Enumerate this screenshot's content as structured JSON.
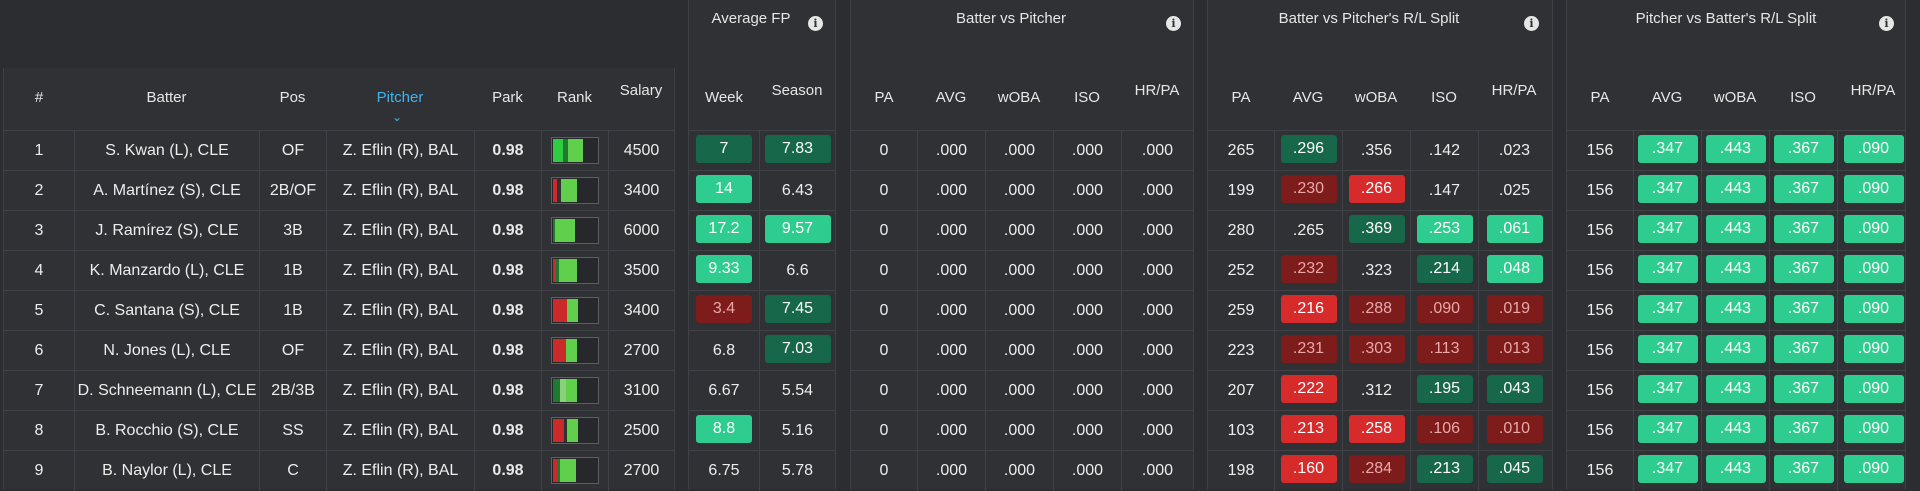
{
  "headers": {
    "left": {
      "num": "#",
      "batter": "Batter",
      "pos": "Pos",
      "pitcher": "Pitcher",
      "park": "Park",
      "rank": "Rank",
      "salary": "Salary"
    },
    "avgfp": {
      "title": "Average FP",
      "week": "Week",
      "season": "Season"
    },
    "bvp": {
      "title": "Batter vs Pitcher",
      "cols": [
        "PA",
        "AVG",
        "wOBA",
        "ISO",
        "HR/PA"
      ]
    },
    "bvprl": {
      "title": "Batter vs Pitcher's R/L Split",
      "cols": [
        "PA",
        "AVG",
        "wOBA",
        "ISO",
        "HR/PA"
      ]
    },
    "pvbrl": {
      "title": "Pitcher vs Batter's R/L Split",
      "cols": [
        "PA",
        "AVG",
        "wOBA",
        "ISO",
        "HR/PA"
      ]
    }
  },
  "rows": [
    {
      "num": "1",
      "batter": "S. Kwan (L), CLE",
      "pos": "OF",
      "pitcher": "Z. Eflin (R), BAL",
      "park": "0.98",
      "salary": "4500",
      "rank": [
        [
          "#2ecc40",
          0.22
        ],
        [
          "#1f7a31",
          0.12
        ],
        [
          "#5fcf4c",
          0.34
        ]
      ],
      "week": {
        "v": "7",
        "c": "g2"
      },
      "season": {
        "v": "7.83",
        "c": "g2"
      },
      "bvp": [
        "0",
        ".000",
        ".000",
        ".000",
        ".000"
      ],
      "bvprl": [
        {
          "v": "265"
        },
        {
          "v": ".296",
          "c": "g2"
        },
        {
          "v": ".356"
        },
        {
          "v": ".142"
        },
        {
          "v": ".023"
        }
      ],
      "pvbrl": [
        {
          "v": "156"
        },
        {
          "v": ".347",
          "c": "g1"
        },
        {
          "v": ".443",
          "c": "g1"
        },
        {
          "v": ".367",
          "c": "g1"
        },
        {
          "v": ".090",
          "c": "g1"
        }
      ]
    },
    {
      "num": "2",
      "batter": "A. Martínez (S), CLE",
      "pos": "2B/OF",
      "pitcher": "Z. Eflin (R), BAL",
      "park": "0.98",
      "salary": "3400",
      "rank": [
        [
          "#cc2a2a",
          0.1
        ],
        [
          "#2f3134",
          0.08
        ],
        [
          "#5fcf4c",
          0.36
        ]
      ],
      "week": {
        "v": "14",
        "c": "g1"
      },
      "season": {
        "v": "6.43"
      },
      "bvp": [
        "0",
        ".000",
        ".000",
        ".000",
        ".000"
      ],
      "bvprl": [
        {
          "v": "199"
        },
        {
          "v": ".230",
          "c": "r2"
        },
        {
          "v": ".266",
          "c": "r1"
        },
        {
          "v": ".147"
        },
        {
          "v": ".025"
        }
      ],
      "pvbrl": [
        {
          "v": "156"
        },
        {
          "v": ".347",
          "c": "g1"
        },
        {
          "v": ".443",
          "c": "g1"
        },
        {
          "v": ".367",
          "c": "g1"
        },
        {
          "v": ".090",
          "c": "g1"
        }
      ]
    },
    {
      "num": "3",
      "batter": "J. Ramírez (S), CLE",
      "pos": "3B",
      "pitcher": "Z. Eflin (R), BAL",
      "park": "0.98",
      "salary": "6000",
      "rank": [
        [
          "#1f7a31",
          0.05
        ],
        [
          "#5fcf4c",
          0.45
        ]
      ],
      "week": {
        "v": "17.2",
        "c": "g1"
      },
      "season": {
        "v": "9.57",
        "c": "g1"
      },
      "bvp": [
        "0",
        ".000",
        ".000",
        ".000",
        ".000"
      ],
      "bvprl": [
        {
          "v": "280"
        },
        {
          "v": ".265"
        },
        {
          "v": ".369",
          "c": "g2"
        },
        {
          "v": ".253",
          "c": "g1"
        },
        {
          "v": ".061",
          "c": "g1"
        }
      ],
      "pvbrl": [
        {
          "v": "156"
        },
        {
          "v": ".347",
          "c": "g1"
        },
        {
          "v": ".443",
          "c": "g1"
        },
        {
          "v": ".367",
          "c": "g1"
        },
        {
          "v": ".090",
          "c": "g1"
        }
      ]
    },
    {
      "num": "4",
      "batter": "K. Manzardo (L), CLE",
      "pos": "1B",
      "pitcher": "Z. Eflin (R), BAL",
      "park": "0.98",
      "salary": "3500",
      "rank": [
        [
          "#cc2a2a",
          0.06
        ],
        [
          "#1f7a31",
          0.06
        ],
        [
          "#5fcf4c",
          0.4
        ]
      ],
      "week": {
        "v": "9.33",
        "c": "g1"
      },
      "season": {
        "v": "6.6"
      },
      "bvp": [
        "0",
        ".000",
        ".000",
        ".000",
        ".000"
      ],
      "bvprl": [
        {
          "v": "252"
        },
        {
          "v": ".232",
          "c": "r2"
        },
        {
          "v": ".323"
        },
        {
          "v": ".214",
          "c": "g2"
        },
        {
          "v": ".048",
          "c": "g1"
        }
      ],
      "pvbrl": [
        {
          "v": "156"
        },
        {
          "v": ".347",
          "c": "g1"
        },
        {
          "v": ".443",
          "c": "g1"
        },
        {
          "v": ".367",
          "c": "g1"
        },
        {
          "v": ".090",
          "c": "g1"
        }
      ]
    },
    {
      "num": "5",
      "batter": "C. Santana (S), CLE",
      "pos": "1B",
      "pitcher": "Z. Eflin (R), BAL",
      "park": "0.98",
      "salary": "3400",
      "rank": [
        [
          "#cc2a2a",
          0.32
        ],
        [
          "#5fcf4c",
          0.24
        ]
      ],
      "week": {
        "v": "3.4",
        "c": "r2"
      },
      "season": {
        "v": "7.45",
        "c": "g2"
      },
      "bvp": [
        "0",
        ".000",
        ".000",
        ".000",
        ".000"
      ],
      "bvprl": [
        {
          "v": "259"
        },
        {
          "v": ".216",
          "c": "r1"
        },
        {
          "v": ".288",
          "c": "r2"
        },
        {
          "v": ".090",
          "c": "r2"
        },
        {
          "v": ".019",
          "c": "r2"
        }
      ],
      "pvbrl": [
        {
          "v": "156"
        },
        {
          "v": ".347",
          "c": "g1"
        },
        {
          "v": ".443",
          "c": "g1"
        },
        {
          "v": ".367",
          "c": "g1"
        },
        {
          "v": ".090",
          "c": "g1"
        }
      ]
    },
    {
      "num": "6",
      "batter": "N. Jones (L), CLE",
      "pos": "OF",
      "pitcher": "Z. Eflin (R), BAL",
      "park": "0.98",
      "salary": "2700",
      "rank": [
        [
          "#cc2a2a",
          0.3
        ],
        [
          "#5fcf4c",
          0.26
        ]
      ],
      "week": {
        "v": "6.8"
      },
      "season": {
        "v": "7.03",
        "c": "g2"
      },
      "bvp": [
        "0",
        ".000",
        ".000",
        ".000",
        ".000"
      ],
      "bvprl": [
        {
          "v": "223"
        },
        {
          "v": ".231",
          "c": "r2"
        },
        {
          "v": ".303",
          "c": "r2"
        },
        {
          "v": ".113",
          "c": "r2"
        },
        {
          "v": ".013",
          "c": "r2"
        }
      ],
      "pvbrl": [
        {
          "v": "156"
        },
        {
          "v": ".347",
          "c": "g1"
        },
        {
          "v": ".443",
          "c": "g1"
        },
        {
          "v": ".367",
          "c": "g1"
        },
        {
          "v": ".090",
          "c": "g1"
        }
      ]
    },
    {
      "num": "7",
      "batter": "D. Schneemann (L), CLE",
      "pos": "2B/3B",
      "pitcher": "Z. Eflin (R), BAL",
      "park": "0.98",
      "salary": "3100",
      "rank": [
        [
          "#1f7a31",
          0.16
        ],
        [
          "#8bd07a",
          0.14
        ],
        [
          "#5fcf4c",
          0.26
        ]
      ],
      "week": {
        "v": "6.67"
      },
      "season": {
        "v": "5.54"
      },
      "bvp": [
        "0",
        ".000",
        ".000",
        ".000",
        ".000"
      ],
      "bvprl": [
        {
          "v": "207"
        },
        {
          "v": ".222",
          "c": "r1"
        },
        {
          "v": ".312"
        },
        {
          "v": ".195",
          "c": "g2"
        },
        {
          "v": ".043",
          "c": "g2"
        }
      ],
      "pvbrl": [
        {
          "v": "156"
        },
        {
          "v": ".347",
          "c": "g1"
        },
        {
          "v": ".443",
          "c": "g1"
        },
        {
          "v": ".367",
          "c": "g1"
        },
        {
          "v": ".090",
          "c": "g1"
        }
      ]
    },
    {
      "num": "8",
      "batter": "B. Rocchio (S), CLE",
      "pos": "SS",
      "pitcher": "Z. Eflin (R), BAL",
      "park": "0.98",
      "salary": "2500",
      "rank": [
        [
          "#cc2a2a",
          0.24
        ],
        [
          "#2f3134",
          0.06
        ],
        [
          "#5fcf4c",
          0.26
        ]
      ],
      "week": {
        "v": "8.8",
        "c": "g1"
      },
      "season": {
        "v": "5.16"
      },
      "bvp": [
        "0",
        ".000",
        ".000",
        ".000",
        ".000"
      ],
      "bvprl": [
        {
          "v": "103"
        },
        {
          "v": ".213",
          "c": "r1"
        },
        {
          "v": ".258",
          "c": "r1"
        },
        {
          "v": ".106",
          "c": "r2"
        },
        {
          "v": ".010",
          "c": "r2"
        }
      ],
      "pvbrl": [
        {
          "v": "156"
        },
        {
          "v": ".347",
          "c": "g1"
        },
        {
          "v": ".443",
          "c": "g1"
        },
        {
          "v": ".367",
          "c": "g1"
        },
        {
          "v": ".090",
          "c": "g1"
        }
      ]
    },
    {
      "num": "9",
      "batter": "B. Naylor (L), CLE",
      "pos": "C",
      "pitcher": "Z. Eflin (R), BAL",
      "park": "0.98",
      "salary": "2700",
      "rank": [
        [
          "#cc2a2a",
          0.1
        ],
        [
          "#1f7a31",
          0.06
        ],
        [
          "#5fcf4c",
          0.36
        ]
      ],
      "week": {
        "v": "6.75"
      },
      "season": {
        "v": "5.78"
      },
      "bvp": [
        "0",
        ".000",
        ".000",
        ".000",
        ".000"
      ],
      "bvprl": [
        {
          "v": "198"
        },
        {
          "v": ".160",
          "c": "r1"
        },
        {
          "v": ".284",
          "c": "r2"
        },
        {
          "v": ".213",
          "c": "g2"
        },
        {
          "v": ".045",
          "c": "g2"
        }
      ],
      "pvbrl": [
        {
          "v": "156"
        },
        {
          "v": ".347",
          "c": "g1"
        },
        {
          "v": ".443",
          "c": "g1"
        },
        {
          "v": ".367",
          "c": "g1"
        },
        {
          "v": ".090",
          "c": "g1"
        }
      ]
    }
  ]
}
